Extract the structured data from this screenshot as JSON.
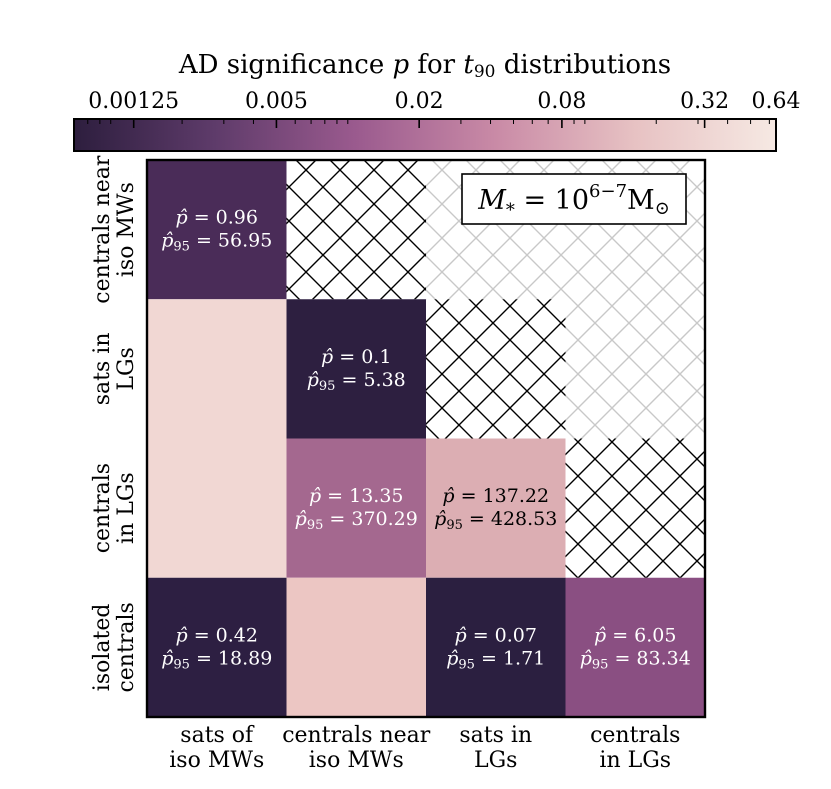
{
  "chart_data": {
    "type": "heatmap",
    "colorbar": {
      "title_prefix": "AD significance ",
      "title_var": "p",
      "title_mid": " for ",
      "title_var2": "t",
      "title_sub": "90",
      "title_suffix": " distributions",
      "scale": "log",
      "range": [
        0.0007,
        0.64
      ],
      "ticks": [
        {
          "value": 0.00125,
          "label": "0.00125"
        },
        {
          "value": 0.005,
          "label": "0.005"
        },
        {
          "value": 0.02,
          "label": "0.02"
        },
        {
          "value": 0.08,
          "label": "0.08"
        },
        {
          "value": 0.32,
          "label": "0.32"
        },
        {
          "value": 0.64,
          "label": "0.64"
        }
      ],
      "colors": [
        "#2d1e3e",
        "#5e3b6a",
        "#9a5a8e",
        "#c98aa6",
        "#e7c2c3",
        "#f6e9e3"
      ]
    },
    "x_labels": [
      [
        "sats of",
        "iso MWs"
      ],
      [
        "centrals near",
        "iso MWs"
      ],
      [
        "sats in",
        "LGs"
      ],
      [
        "centrals",
        "in LGs"
      ]
    ],
    "y_labels": [
      [
        "centrals near",
        "iso MWs"
      ],
      [
        "sats in",
        "LGs"
      ],
      [
        "centrals",
        "in LGs"
      ],
      [
        "isolated",
        "centrals"
      ]
    ],
    "cells": [
      {
        "row": 0,
        "col": 0,
        "color": "#4a2c58",
        "p_hat": "0.96",
        "p95_hat": "56.95"
      },
      {
        "row": 0,
        "col": 1,
        "hatch": "black"
      },
      {
        "row": 0,
        "col": 2,
        "hatch": "grey"
      },
      {
        "row": 0,
        "col": 3,
        "hatch": "grey"
      },
      {
        "row": 1,
        "col": 0,
        "color": "#f1d7d3"
      },
      {
        "row": 1,
        "col": 1,
        "color": "#2d1f40",
        "p_hat": "0.1",
        "p95_hat": "5.38"
      },
      {
        "row": 1,
        "col": 2,
        "hatch": "black"
      },
      {
        "row": 1,
        "col": 3,
        "hatch": "grey"
      },
      {
        "row": 2,
        "col": 0,
        "color": "#f1d7d3"
      },
      {
        "row": 2,
        "col": 1,
        "color": "#a4688f",
        "p_hat": "13.35",
        "p95_hat": "370.29"
      },
      {
        "row": 2,
        "col": 2,
        "color": "#dcaeb3",
        "p_hat": "137.22",
        "p95_hat": "428.53"
      },
      {
        "row": 2,
        "col": 3,
        "hatch": "black"
      },
      {
        "row": 3,
        "col": 0,
        "color": "#2d1f42",
        "p_hat": "0.42",
        "p95_hat": "18.89"
      },
      {
        "row": 3,
        "col": 1,
        "color": "#ecc6c3"
      },
      {
        "row": 3,
        "col": 2,
        "color": "#2b1f40",
        "p_hat": "0.07",
        "p95_hat": "1.71"
      },
      {
        "row": 3,
        "col": 3,
        "color": "#8a4f82",
        "p_hat": "6.05",
        "p95_hat": "83.34"
      }
    ],
    "annotation": {
      "var": "M",
      "sub": "*",
      "eq": " = 10",
      "exp": "6−7",
      "unit": "M",
      "unit_sub": "⊙"
    }
  }
}
